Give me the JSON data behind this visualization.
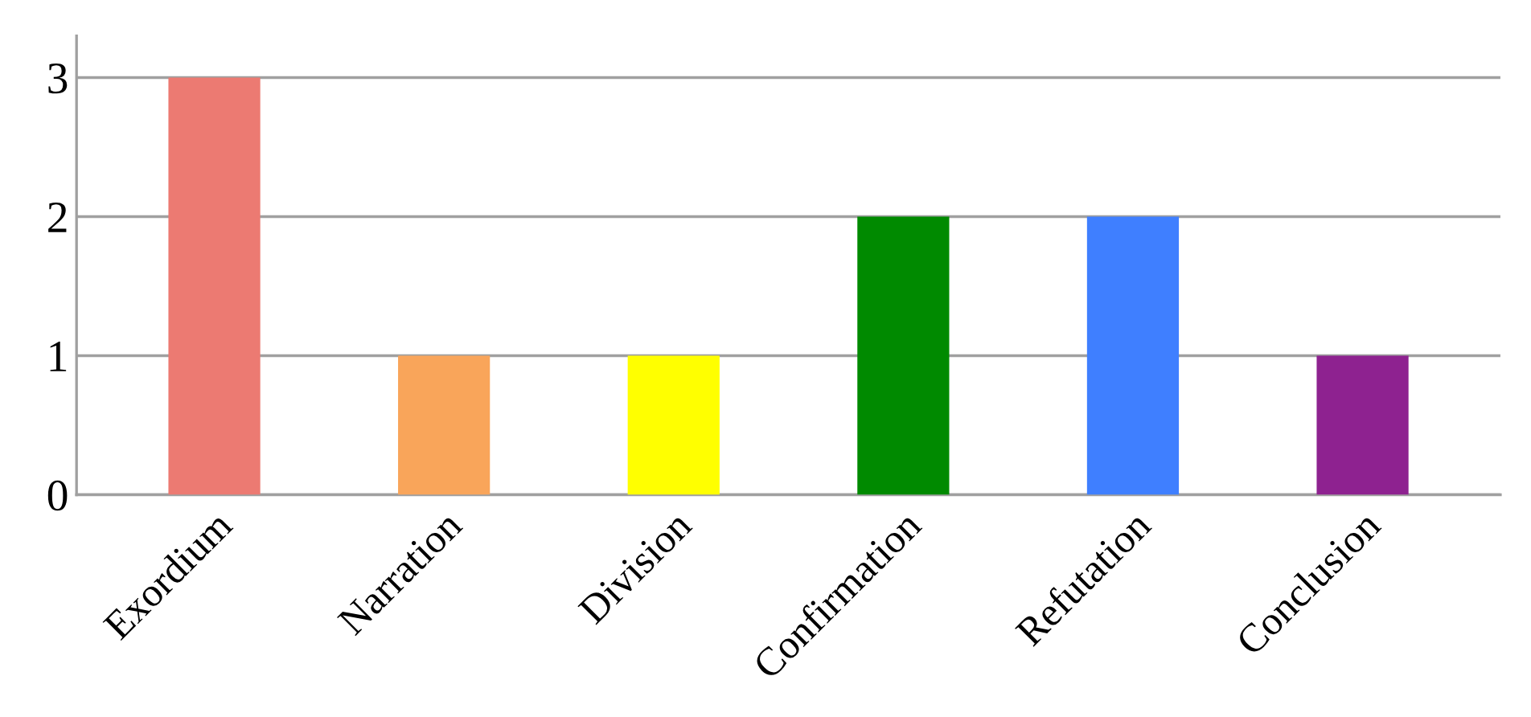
{
  "chart_data": {
    "type": "bar",
    "categories": [
      "Exordium",
      "Narration",
      "Division",
      "Confirmation",
      "Refutation",
      "Conclusion"
    ],
    "values": [
      3,
      1,
      1,
      2,
      2,
      1
    ],
    "colors": [
      "#ec7a72",
      "#f9a55a",
      "#ffff00",
      "#008a00",
      "#3f7fff",
      "#8e2290"
    ],
    "ylim": [
      0,
      3.3
    ],
    "yticks": [
      0,
      1,
      2,
      3
    ],
    "grid": "y"
  }
}
